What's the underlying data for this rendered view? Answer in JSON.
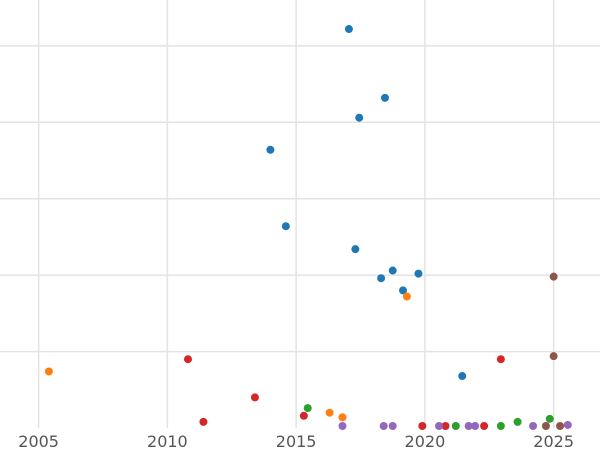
{
  "chart_data": {
    "type": "scatter",
    "title": "",
    "xlabel": "",
    "ylabel": "",
    "xlim": [
      2003.5,
      2026.8
    ],
    "ylim": [
      0,
      28
    ],
    "x_ticks": [
      2005,
      2010,
      2015,
      2020,
      2025
    ],
    "x_tick_labels": [
      "2005",
      "2010",
      "2015",
      "2020",
      "2025"
    ],
    "grid": true,
    "legend": "none",
    "series": [
      {
        "color": "#1f77b4",
        "points": [
          {
            "x": 2017.05,
            "y": 26.1
          },
          {
            "x": 2018.45,
            "y": 21.6
          },
          {
            "x": 2017.45,
            "y": 20.3
          },
          {
            "x": 2014.0,
            "y": 18.2
          },
          {
            "x": 2014.6,
            "y": 13.2
          },
          {
            "x": 2017.3,
            "y": 11.7
          },
          {
            "x": 2018.75,
            "y": 10.3
          },
          {
            "x": 2018.3,
            "y": 9.8
          },
          {
            "x": 2019.75,
            "y": 10.1
          },
          {
            "x": 2019.15,
            "y": 9.0
          },
          {
            "x": 2021.45,
            "y": 3.4
          }
        ]
      },
      {
        "color": "#ff7f0e",
        "points": [
          {
            "x": 2005.4,
            "y": 3.7
          },
          {
            "x": 2019.3,
            "y": 8.6
          },
          {
            "x": 2016.3,
            "y": 1.0
          },
          {
            "x": 2016.8,
            "y": 0.7
          }
        ]
      },
      {
        "color": "#d62728",
        "points": [
          {
            "x": 2010.8,
            "y": 4.5
          },
          {
            "x": 2011.4,
            "y": 0.4
          },
          {
            "x": 2013.4,
            "y": 2.0
          },
          {
            "x": 2015.3,
            "y": 0.8
          },
          {
            "x": 2019.9,
            "y": 0.1
          },
          {
            "x": 2020.8,
            "y": 0.1
          },
          {
            "x": 2022.3,
            "y": 0.1
          },
          {
            "x": 2022.95,
            "y": 4.5
          }
        ]
      },
      {
        "color": "#2ca02c",
        "points": [
          {
            "x": 2015.45,
            "y": 1.3
          },
          {
            "x": 2021.2,
            "y": 0.1
          },
          {
            "x": 2022.95,
            "y": 0.0
          },
          {
            "x": 2023.6,
            "y": 0.4
          },
          {
            "x": 2024.85,
            "y": 0.6
          }
        ]
      },
      {
        "color": "#9467bd",
        "points": [
          {
            "x": 2016.8,
            "y": 0.0
          },
          {
            "x": 2018.4,
            "y": 0.0
          },
          {
            "x": 2018.75,
            "y": 0.0
          },
          {
            "x": 2020.55,
            "y": 0.0
          },
          {
            "x": 2021.7,
            "y": 0.0
          },
          {
            "x": 2021.95,
            "y": 0.0
          },
          {
            "x": 2024.2,
            "y": 0.1
          },
          {
            "x": 2025.55,
            "y": 0.2
          }
        ]
      },
      {
        "color": "#8c564b",
        "points": [
          {
            "x": 2025.0,
            "y": 9.9
          },
          {
            "x": 2025.0,
            "y": 4.7
          },
          {
            "x": 2024.7,
            "y": 0.1
          },
          {
            "x": 2025.25,
            "y": 0.0
          }
        ]
      }
    ]
  }
}
